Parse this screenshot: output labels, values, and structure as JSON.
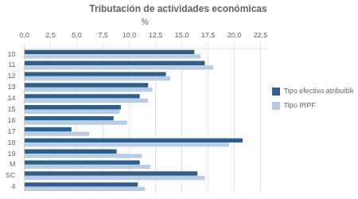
{
  "chart_data": {
    "type": "bar",
    "orientation": "horizontal",
    "title": "Tributación de actividades económicas",
    "xlabel": "%",
    "categories": [
      "10",
      "11",
      "12",
      "13",
      "14",
      "15",
      "16",
      "17",
      "18",
      "19",
      "M",
      "SC",
      "4"
    ],
    "series": [
      {
        "name": "Tipo efectivo atribuible",
        "color": "#2E5F8A",
        "values": [
          16.2,
          17.2,
          13.5,
          11.8,
          11.0,
          9.2,
          8.5,
          4.5,
          20.8,
          8.8,
          11.0,
          16.5,
          10.8
        ]
      },
      {
        "name": "Tipo IRPF",
        "color": "#B8CCE4",
        "values": [
          16.8,
          18.0,
          13.9,
          12.2,
          11.8,
          9.1,
          9.8,
          6.2,
          19.5,
          11.2,
          12.0,
          17.2,
          11.5
        ]
      }
    ],
    "xlim": [
      0,
      23.0
    ],
    "xticks": [
      {
        "value": 0.0,
        "label": "0,0"
      },
      {
        "value": 2.5,
        "label": "2,5"
      },
      {
        "value": 5.0,
        "label": "5,0"
      },
      {
        "value": 7.5,
        "label": "7,5"
      },
      {
        "value": 10.0,
        "label": "10,0"
      },
      {
        "value": 12.5,
        "label": "12,5"
      },
      {
        "value": 15.0,
        "label": "15,0"
      },
      {
        "value": 17.5,
        "label": "17,5"
      },
      {
        "value": 20.0,
        "label": "20,0"
      },
      {
        "value": 22.5,
        "label": "22,5"
      }
    ],
    "grid": true,
    "legend": "right"
  }
}
